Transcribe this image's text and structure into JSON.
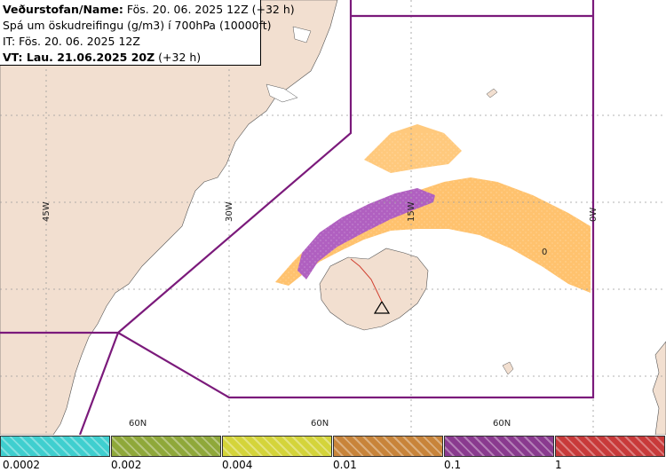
{
  "header": {
    "line1_prefix": "Veðurstofan/Name:",
    "line1_value": "Fös. 20. 06. 2025 12Z (+32 h)",
    "line2": "Spá um öskudreifingu (g/m3) í 700hPa (10000ft)",
    "line3": "IT: Fös. 20. 06. 2025 12Z",
    "line4": "VT: Lau. 21.06.2025 20Z",
    "line4_suffix": "(+32 h)"
  },
  "map_labels": {
    "lon_45w": "45W",
    "lon_30w": "30W",
    "lon_15w": "15W",
    "lon_0w": "0W",
    "lat_a": "60N",
    "lat_b": "60N",
    "lat_c": "60N",
    "marker": "0"
  },
  "legend": {
    "colors": [
      "#3fcfcf",
      "#8fa83a",
      "#d4d43a",
      "#c8843a",
      "#8a3a8f",
      "#c83a3a"
    ],
    "ticks": [
      "0.0002",
      "0.002",
      "0.004",
      "0.01",
      "0.1",
      "1"
    ]
  },
  "colors": {
    "land": "#f2dfd0",
    "sea": "#ffffff",
    "boundary": "#7b1a7b",
    "ash_orange": "#ffbf66",
    "ash_purple": "#b060c0"
  }
}
